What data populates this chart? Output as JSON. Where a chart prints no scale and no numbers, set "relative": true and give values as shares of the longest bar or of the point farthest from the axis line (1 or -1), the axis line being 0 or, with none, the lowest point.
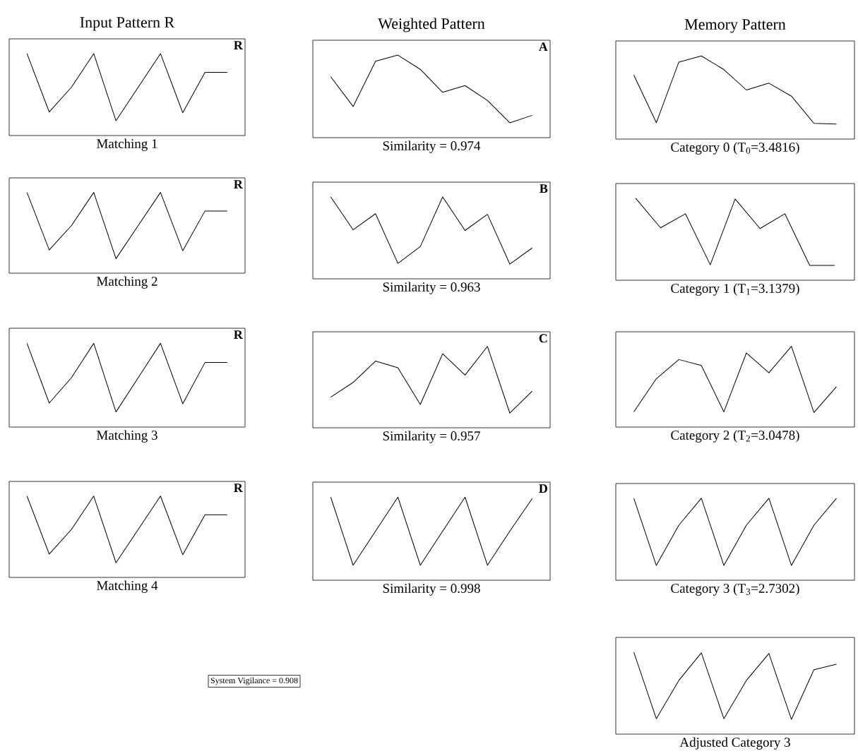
{
  "chart_data": [
    {
      "type": "line",
      "relative": true,
      "title": "Input Pattern R",
      "xlabel": "Matching 1",
      "annotations": [
        "R"
      ],
      "color": "#000000",
      "categories": [
        null,
        null,
        null,
        null,
        null,
        null,
        null,
        null,
        null,
        null
      ],
      "values": [
        1,
        0.13,
        0.5,
        1,
        0,
        0.5,
        1,
        0.12,
        0.72,
        0.72
      ]
    },
    {
      "type": "line",
      "relative": true,
      "title": "Weighted Pattern",
      "xlabel": "Similarity = 0.974",
      "annotations": [
        "A"
      ],
      "color": "#000000",
      "categories": [
        null,
        null,
        null,
        null,
        null,
        null,
        null,
        null,
        null,
        null
      ],
      "values": [
        0.68,
        0.24,
        0.91,
        1,
        0.79,
        0.45,
        0.55,
        0.33,
        0,
        0.11
      ]
    },
    {
      "type": "line",
      "relative": true,
      "title": "Memory Pattern",
      "xlabel": "Category 0  (T$_{0}$=3.4816)",
      "color": "#000000",
      "categories": [
        null,
        null,
        null,
        null,
        null,
        null,
        null,
        null,
        null,
        null
      ],
      "values": [
        0.72,
        0.02,
        0.91,
        1,
        0.8,
        0.5,
        0.6,
        0.41,
        0.01,
        0
      ]
    },
    {
      "type": "line",
      "relative": true,
      "xlabel": "Matching 2",
      "annotations": [
        "R"
      ],
      "color": "#000000",
      "categories": [
        null,
        null,
        null,
        null,
        null,
        null,
        null,
        null,
        null,
        null
      ],
      "values": [
        1,
        0.13,
        0.5,
        1,
        0,
        0.5,
        1,
        0.12,
        0.72,
        0.72
      ]
    },
    {
      "type": "line",
      "relative": true,
      "xlabel": "Similarity = 0.963",
      "annotations": [
        "B"
      ],
      "color": "#000000",
      "categories": [
        null,
        null,
        null,
        null,
        null,
        null,
        null,
        null,
        null,
        null
      ],
      "values": [
        1,
        0.51,
        0.75,
        0.01,
        0.26,
        1,
        0.5,
        0.74,
        0,
        0.24
      ]
    },
    {
      "type": "line",
      "relative": true,
      "xlabel": "Category 1  (T$_{1}$=3.1379)",
      "color": "#000000",
      "categories": [
        null,
        null,
        null,
        null,
        null,
        null,
        null,
        null,
        null
      ],
      "values": [
        1,
        0.56,
        0.77,
        0.01,
        0.99,
        0.55,
        0.77,
        0,
        0
      ]
    },
    {
      "type": "line",
      "relative": true,
      "xlabel": "Matching 3",
      "annotations": [
        "R"
      ],
      "color": "#000000",
      "categories": [
        null,
        null,
        null,
        null,
        null,
        null,
        null,
        null,
        null,
        null
      ],
      "values": [
        1,
        0.13,
        0.5,
        1,
        0,
        0.5,
        1,
        0.12,
        0.72,
        0.72
      ]
    },
    {
      "type": "line",
      "relative": true,
      "xlabel": "Similarity = 0.957",
      "annotations": [
        "C"
      ],
      "color": "#000000",
      "categories": [
        null,
        null,
        null,
        null,
        null,
        null,
        null,
        null,
        null,
        null
      ],
      "values": [
        0.24,
        0.46,
        0.78,
        0.68,
        0.13,
        0.89,
        0.57,
        1,
        0,
        0.33
      ]
    },
    {
      "type": "line",
      "relative": true,
      "xlabel": "Category 2  (T$_{2}$=3.0478)",
      "color": "#000000",
      "categories": [
        null,
        null,
        null,
        null,
        null,
        null,
        null,
        null,
        null,
        null
      ],
      "values": [
        0.01,
        0.51,
        0.8,
        0.71,
        0.01,
        0.9,
        0.6,
        1,
        0,
        0.39
      ]
    },
    {
      "type": "line",
      "relative": true,
      "xlabel": "Matching 4",
      "annotations": [
        "R"
      ],
      "color": "#000000",
      "categories": [
        null,
        null,
        null,
        null,
        null,
        null,
        null,
        null,
        null,
        null
      ],
      "values": [
        1,
        0.13,
        0.5,
        1,
        0,
        0.5,
        1,
        0.12,
        0.72,
        0.72
      ]
    },
    {
      "type": "line",
      "relative": true,
      "xlabel": "Similarity = 0.998",
      "annotations": [
        "D"
      ],
      "color": "#000000",
      "categories": [
        null,
        null,
        null,
        null,
        null,
        null,
        null,
        null,
        null,
        null
      ],
      "values": [
        1,
        0,
        0.5,
        1,
        0,
        0.5,
        1,
        0,
        0.5,
        0.98
      ]
    },
    {
      "type": "line",
      "relative": true,
      "xlabel": "Category 3  (T$_{3}$=2.7302)",
      "color": "#000000",
      "categories": [
        null,
        null,
        null,
        null,
        null,
        null,
        null,
        null,
        null,
        null
      ],
      "values": [
        1,
        0,
        0.6,
        1,
        0,
        0.6,
        1,
        0,
        0.6,
        1
      ]
    },
    {
      "type": "other",
      "annotations": [
        "System Vigilance = 0.908"
      ]
    },
    {
      "type": "line",
      "relative": true,
      "xlabel": "Adjusted Category 3",
      "color": "#000000",
      "categories": [
        null,
        null,
        null,
        null,
        null,
        null,
        null,
        null,
        null,
        null
      ],
      "values": [
        1,
        0.01,
        0.58,
        0.99,
        0.01,
        0.58,
        0.98,
        0,
        0.74,
        0.82
      ]
    }
  ]
}
